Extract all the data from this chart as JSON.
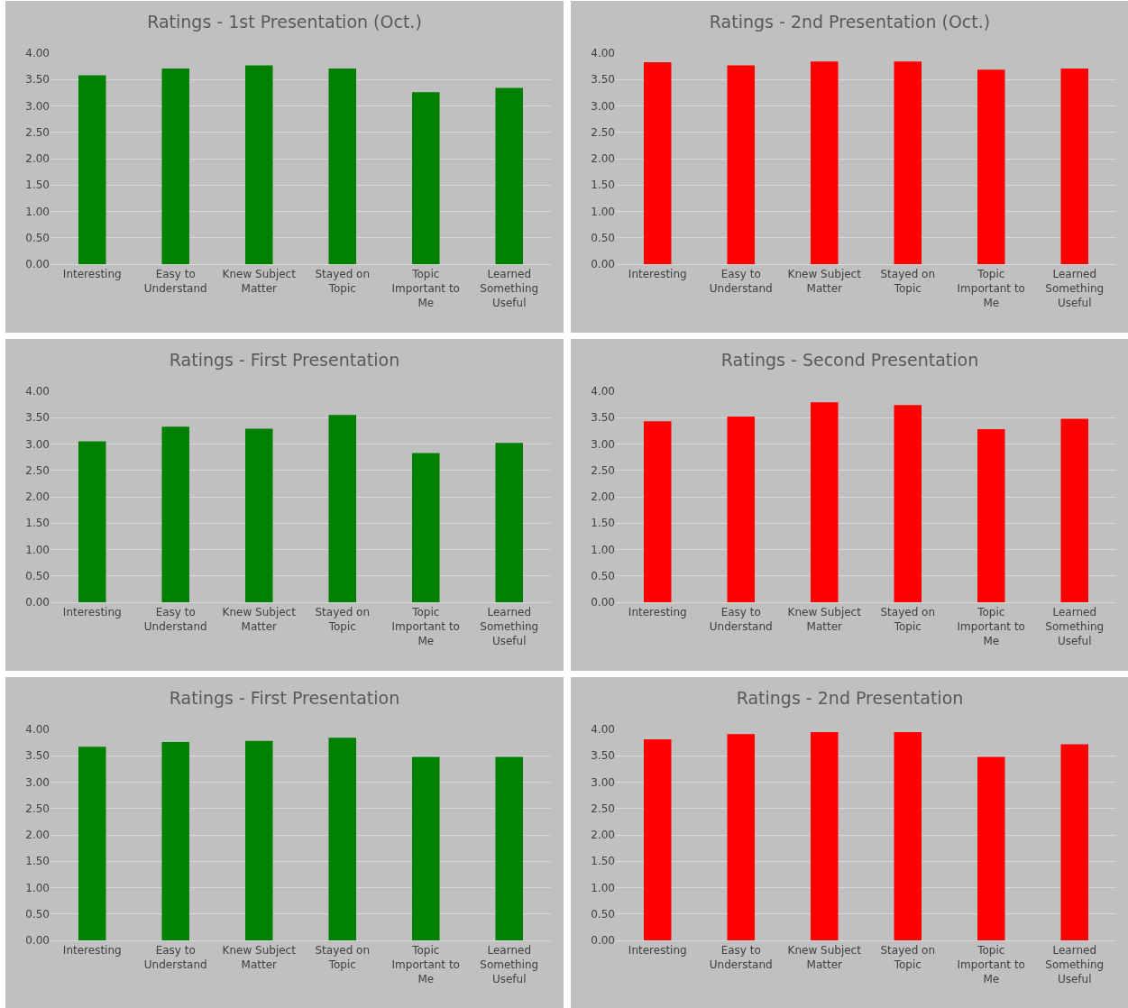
{
  "chart_data": [
    {
      "type": "bar",
      "title": "Ratings - 1st Presentation (Oct.)",
      "categories": [
        "Interesting",
        "Easy to Understand",
        "Knew Subject Matter",
        "Stayed on Topic",
        "Topic Important to Me",
        "Learned Something Useful"
      ],
      "values": [
        3.58,
        3.71,
        3.77,
        3.71,
        3.26,
        3.34
      ],
      "color": "#008000",
      "ylim": [
        0,
        4
      ],
      "yticks": [
        {
          "value": 0,
          "label": "0.00"
        },
        {
          "value": 0.5,
          "label": "0.50"
        },
        {
          "value": 1,
          "label": "1.00"
        },
        {
          "value": 1.5,
          "label": "1.50"
        },
        {
          "value": 2,
          "label": "2.00"
        },
        {
          "value": 2.5,
          "label": "2.50"
        },
        {
          "value": 3,
          "label": "3.00"
        },
        {
          "value": 3.5,
          "label": "3.50"
        },
        {
          "value": 4,
          "label": "4.00"
        }
      ],
      "grid": "y",
      "legend": false
    },
    {
      "type": "bar",
      "title": "Ratings - 2nd Presentation (Oct.)",
      "categories": [
        "Interesting",
        "Easy to Understand",
        "Knew Subject Matter",
        "Stayed on Topic",
        "Topic Important to Me",
        "Learned Something Useful"
      ],
      "values": [
        3.83,
        3.77,
        3.84,
        3.84,
        3.69,
        3.71
      ],
      "color": "#ff0000",
      "ylim": [
        0,
        4
      ],
      "yticks": [
        {
          "value": 0,
          "label": "0.00"
        },
        {
          "value": 0.5,
          "label": "0.50"
        },
        {
          "value": 1,
          "label": "1.00"
        },
        {
          "value": 1.5,
          "label": "1.50"
        },
        {
          "value": 2,
          "label": "2.00"
        },
        {
          "value": 2.5,
          "label": "2.50"
        },
        {
          "value": 3,
          "label": "3.00"
        },
        {
          "value": 3.5,
          "label": "3.50"
        },
        {
          "value": 4,
          "label": "4.00"
        }
      ],
      "grid": "y",
      "legend": false
    },
    {
      "type": "bar",
      "title": "Ratings - First Presentation",
      "categories": [
        "Interesting",
        "Easy to Understand",
        "Knew Subject Matter",
        "Stayed on Topic",
        "Topic Important to Me",
        "Learned Something Useful"
      ],
      "values": [
        3.05,
        3.33,
        3.29,
        3.55,
        2.83,
        3.02
      ],
      "color": "#008000",
      "ylim": [
        0,
        4
      ],
      "yticks": [
        {
          "value": 0,
          "label": "0.00"
        },
        {
          "value": 0.5,
          "label": "0.50"
        },
        {
          "value": 1,
          "label": "1.00"
        },
        {
          "value": 1.5,
          "label": "1.50"
        },
        {
          "value": 2,
          "label": "2.00"
        },
        {
          "value": 2.5,
          "label": "2.50"
        },
        {
          "value": 3,
          "label": "3.00"
        },
        {
          "value": 3.5,
          "label": "3.50"
        },
        {
          "value": 4,
          "label": "4.00"
        }
      ],
      "grid": "y",
      "legend": false
    },
    {
      "type": "bar",
      "title": "Ratings - Second Presentation",
      "categories": [
        "Interesting",
        "Easy to Understand",
        "Knew Subject Matter",
        "Stayed on Topic",
        "Topic Important to Me",
        "Learned Something Useful"
      ],
      "values": [
        3.43,
        3.52,
        3.79,
        3.74,
        3.28,
        3.48
      ],
      "color": "#ff0000",
      "ylim": [
        0,
        4
      ],
      "yticks": [
        {
          "value": 0,
          "label": "0.00"
        },
        {
          "value": 0.5,
          "label": "0.50"
        },
        {
          "value": 1,
          "label": "1.00"
        },
        {
          "value": 1.5,
          "label": "1.50"
        },
        {
          "value": 2,
          "label": "2.00"
        },
        {
          "value": 2.5,
          "label": "2.50"
        },
        {
          "value": 3,
          "label": "3.00"
        },
        {
          "value": 3.5,
          "label": "3.50"
        },
        {
          "value": 4,
          "label": "4.00"
        }
      ],
      "grid": "y",
      "legend": false
    },
    {
      "type": "bar",
      "title": "Ratings - First Presentation",
      "categories": [
        "Interesting",
        "Easy to Understand",
        "Knew Subject Matter",
        "Stayed on Topic",
        "Topic Important to Me",
        "Learned Something Useful"
      ],
      "values": [
        3.67,
        3.76,
        3.78,
        3.84,
        3.48,
        3.48
      ],
      "color": "#008000",
      "ylim": [
        0,
        4
      ],
      "yticks": [
        {
          "value": 0,
          "label": "0.00"
        },
        {
          "value": 0.5,
          "label": "0.50"
        },
        {
          "value": 1,
          "label": "1.00"
        },
        {
          "value": 1.5,
          "label": "1.50"
        },
        {
          "value": 2,
          "label": "2.00"
        },
        {
          "value": 2.5,
          "label": "2.50"
        },
        {
          "value": 3,
          "label": "3.00"
        },
        {
          "value": 3.5,
          "label": "3.50"
        },
        {
          "value": 4,
          "label": "4.00"
        }
      ],
      "grid": "y",
      "legend": false
    },
    {
      "type": "bar",
      "title": "Ratings - 2nd Presentation",
      "categories": [
        "Interesting",
        "Easy to Understand",
        "Knew Subject Matter",
        "Stayed on Topic",
        "Topic Important to Me",
        "Learned Something Useful"
      ],
      "values": [
        3.81,
        3.91,
        3.95,
        3.95,
        3.48,
        3.72
      ],
      "color": "#ff0000",
      "ylim": [
        0,
        4
      ],
      "yticks": [
        {
          "value": 0,
          "label": "0.00"
        },
        {
          "value": 0.5,
          "label": "0.50"
        },
        {
          "value": 1,
          "label": "1.00"
        },
        {
          "value": 1.5,
          "label": "1.50"
        },
        {
          "value": 2,
          "label": "2.00"
        },
        {
          "value": 2.5,
          "label": "2.50"
        },
        {
          "value": 3,
          "label": "3.00"
        },
        {
          "value": 3.5,
          "label": "3.50"
        },
        {
          "value": 4,
          "label": "4.00"
        }
      ],
      "grid": "y",
      "legend": false
    }
  ]
}
